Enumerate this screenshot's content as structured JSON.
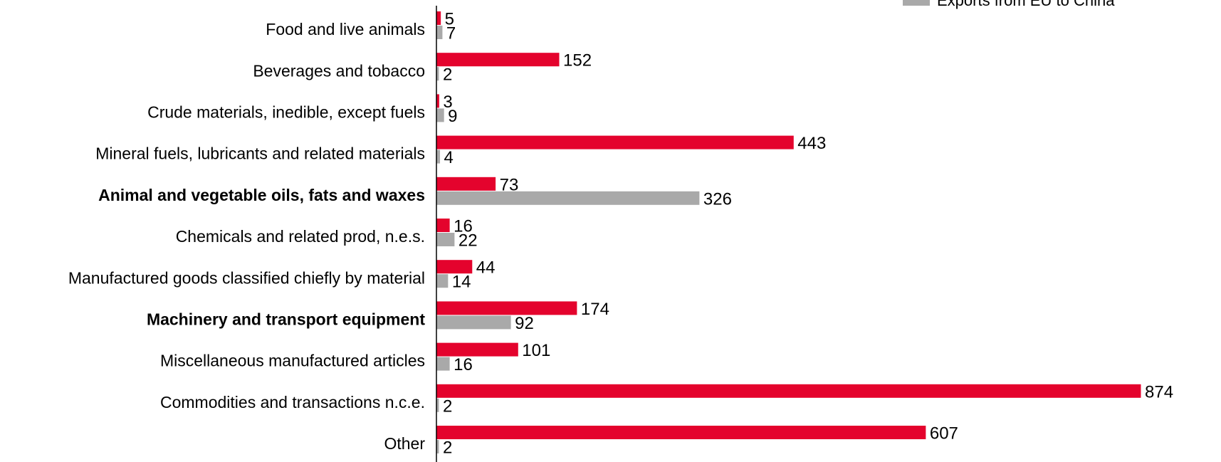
{
  "chart_data": {
    "type": "bar",
    "orientation": "horizontal",
    "categories": [
      "Food and live animals",
      "Beverages and tobacco",
      "Crude materials, inedible, except fuels",
      "Mineral fuels, lubricants and related materials",
      "Animal and vegetable oils, fats and waxes",
      "Chemicals and related prod, n.e.s.",
      "Manufactured goods classified chiefly by material",
      "Machinery and transport equipment",
      "Miscellaneous manufactured articles",
      "Commodities and transactions n.c.e.",
      "Other"
    ],
    "bold_categories": [
      "Animal and vegetable oils, fats and waxes",
      "Machinery and transport equipment"
    ],
    "series": [
      {
        "name": "",
        "color": "#e4032d",
        "values": [
          5,
          152,
          3,
          443,
          73,
          16,
          44,
          174,
          101,
          874,
          607
        ]
      },
      {
        "name": "Exports from EU to China",
        "color": "#a9a9a9",
        "values": [
          7,
          2,
          9,
          4,
          326,
          22,
          14,
          92,
          16,
          2,
          2
        ]
      }
    ],
    "xlim": [
      0,
      874
    ],
    "legend_position": "top-right",
    "grid": false
  }
}
